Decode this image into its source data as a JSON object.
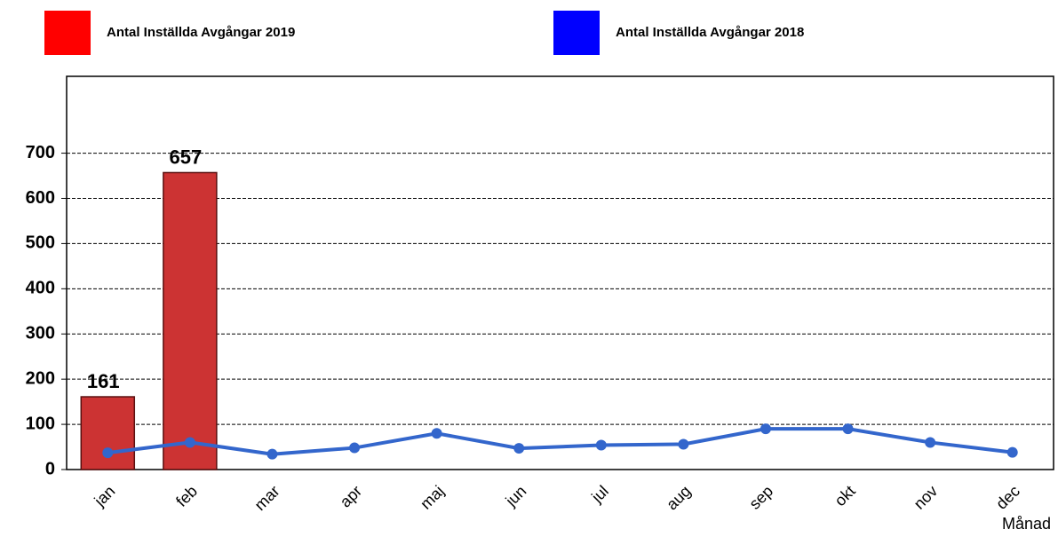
{
  "chart_data": {
    "type": "bar",
    "categories": [
      "jan",
      "feb",
      "mar",
      "apr",
      "maj",
      "jun",
      "jul",
      "aug",
      "sep",
      "okt",
      "nov",
      "dec"
    ],
    "x_label": "Månad",
    "series": [
      {
        "name": "Antal Inställda Avgångar 2019",
        "type": "bar",
        "color": "#cc3333",
        "legend_color": "#ff0000",
        "values": [
          161,
          657,
          null,
          null,
          null,
          null,
          null,
          null,
          null,
          null,
          null,
          null
        ]
      },
      {
        "name": "Antal Inställda Avgångar 2018",
        "type": "line",
        "color": "#3366cc",
        "legend_color": "#0000ff",
        "values": [
          37,
          60,
          34,
          48,
          80,
          47,
          54,
          56,
          90,
          90,
          60,
          38
        ]
      }
    ],
    "ylim": [
      0,
      870
    ],
    "yticks": [
      0,
      100,
      200,
      300,
      400,
      500,
      600,
      700
    ],
    "grid": true,
    "legend": "top"
  }
}
